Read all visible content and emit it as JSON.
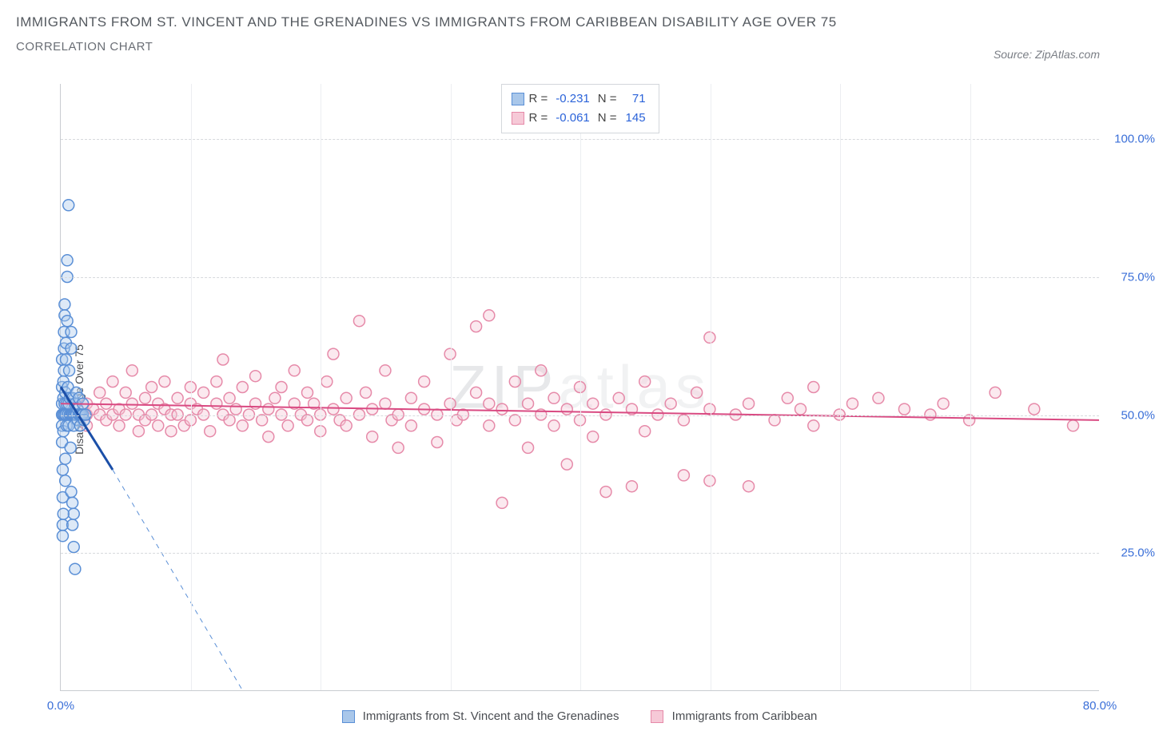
{
  "title_line1": "IMMIGRANTS FROM ST. VINCENT AND THE GRENADINES VS IMMIGRANTS FROM CARIBBEAN DISABILITY AGE OVER 75",
  "title_line2": "CORRELATION CHART",
  "source_label": "Source: ZipAtlas.com",
  "ylabel": "Disability Age Over 75",
  "watermark": {
    "part1": "ZIP",
    "part2": "atlas"
  },
  "chart": {
    "type": "scatter",
    "background_color": "#ffffff",
    "grid_color": "#d7d9dd",
    "axis_color": "#c9ccd1",
    "tick_color": "#3a6fd8",
    "xlim": [
      0,
      80
    ],
    "ylim": [
      0,
      110
    ],
    "xticks": [
      0,
      80
    ],
    "xtick_labels": [
      "0.0%",
      "80.0%"
    ],
    "yticks": [
      25,
      50,
      75,
      100
    ],
    "ytick_labels": [
      "25.0%",
      "50.0%",
      "75.0%",
      "100.0%"
    ],
    "vgrid_positions": [
      10,
      20,
      30,
      40,
      50,
      60,
      70
    ],
    "marker_radius": 7,
    "marker_stroke_width": 1.5,
    "marker_fill_opacity": 0.15,
    "trend_line_width": 2,
    "trend_dash_width": 1,
    "series": [
      {
        "id": "svg_series",
        "name": "Immigrants from St. Vincent and the Grenadines",
        "color_stroke": "#5a8fd6",
        "color_fill": "#a9c7ea",
        "color_line": "#1b4fa8",
        "r_value": "-0.231",
        "n_value": "71",
        "trend": {
          "x1": 0,
          "y1": 55,
          "x2": 4,
          "y2": 40,
          "dash_x2": 14,
          "dash_y2": 0
        },
        "points": [
          [
            0.1,
            50
          ],
          [
            0.1,
            52
          ],
          [
            0.1,
            48
          ],
          [
            0.1,
            55
          ],
          [
            0.1,
            60
          ],
          [
            0.1,
            45
          ],
          [
            0.15,
            30
          ],
          [
            0.15,
            35
          ],
          [
            0.15,
            40
          ],
          [
            0.2,
            50
          ],
          [
            0.2,
            53
          ],
          [
            0.2,
            56
          ],
          [
            0.2,
            47
          ],
          [
            0.25,
            62
          ],
          [
            0.25,
            58
          ],
          [
            0.25,
            65
          ],
          [
            0.3,
            70
          ],
          [
            0.3,
            68
          ],
          [
            0.3,
            50
          ],
          [
            0.3,
            52
          ],
          [
            0.35,
            54
          ],
          [
            0.35,
            42
          ],
          [
            0.35,
            38
          ],
          [
            0.4,
            50
          ],
          [
            0.4,
            60
          ],
          [
            0.4,
            63
          ],
          [
            0.45,
            48
          ],
          [
            0.45,
            52
          ],
          [
            0.5,
            67
          ],
          [
            0.5,
            75
          ],
          [
            0.5,
            78
          ],
          [
            0.55,
            50
          ],
          [
            0.55,
            55
          ],
          [
            0.6,
            52
          ],
          [
            0.6,
            48
          ],
          [
            0.65,
            58
          ],
          [
            0.7,
            50
          ],
          [
            0.7,
            53
          ],
          [
            0.75,
            44
          ],
          [
            0.8,
            50
          ],
          [
            0.8,
            36
          ],
          [
            0.9,
            34
          ],
          [
            0.9,
            30
          ],
          [
            1.0,
            32
          ],
          [
            0.15,
            28
          ],
          [
            0.2,
            32
          ],
          [
            1.0,
            26
          ],
          [
            1.1,
            22
          ],
          [
            0.6,
            88
          ],
          [
            0.8,
            65
          ],
          [
            0.8,
            62
          ],
          [
            0.85,
            50
          ],
          [
            0.9,
            50
          ],
          [
            0.9,
            53
          ],
          [
            1.0,
            50
          ],
          [
            1.0,
            48
          ],
          [
            1.1,
            50
          ],
          [
            1.1,
            52
          ],
          [
            1.2,
            50
          ],
          [
            1.2,
            54
          ],
          [
            1.3,
            49
          ],
          [
            1.3,
            51
          ],
          [
            1.4,
            50
          ],
          [
            1.4,
            53
          ],
          [
            1.5,
            50
          ],
          [
            1.5,
            48
          ],
          [
            1.6,
            50
          ],
          [
            1.7,
            50
          ],
          [
            1.7,
            52
          ],
          [
            1.8,
            49
          ],
          [
            1.9,
            50
          ]
        ]
      },
      {
        "id": "carib_series",
        "name": "Immigrants from Caribbean",
        "color_stroke": "#e68aa9",
        "color_fill": "#f6c9d7",
        "color_line": "#d94a82",
        "r_value": "-0.061",
        "n_value": "145",
        "trend": {
          "x1": 0,
          "y1": 52,
          "x2": 80,
          "y2": 49
        },
        "points": [
          [
            2,
            50
          ],
          [
            2,
            52
          ],
          [
            2,
            48
          ],
          [
            2.5,
            51
          ],
          [
            3,
            50
          ],
          [
            3,
            54
          ],
          [
            3.5,
            49
          ],
          [
            3.5,
            52
          ],
          [
            4,
            50
          ],
          [
            4,
            56
          ],
          [
            4.5,
            51
          ],
          [
            4.5,
            48
          ],
          [
            5,
            50
          ],
          [
            5,
            54
          ],
          [
            5.5,
            52
          ],
          [
            5.5,
            58
          ],
          [
            6,
            50
          ],
          [
            6,
            47
          ],
          [
            6.5,
            53
          ],
          [
            6.5,
            49
          ],
          [
            7,
            50
          ],
          [
            7,
            55
          ],
          [
            7.5,
            52
          ],
          [
            7.5,
            48
          ],
          [
            8,
            51
          ],
          [
            8,
            56
          ],
          [
            8.5,
            50
          ],
          [
            8.5,
            47
          ],
          [
            9,
            53
          ],
          [
            9,
            50
          ],
          [
            9.5,
            48
          ],
          [
            10,
            52
          ],
          [
            10,
            55
          ],
          [
            10,
            49
          ],
          [
            10.5,
            51
          ],
          [
            11,
            50
          ],
          [
            11,
            54
          ],
          [
            11.5,
            47
          ],
          [
            12,
            52
          ],
          [
            12,
            56
          ],
          [
            12.5,
            50
          ],
          [
            12.5,
            60
          ],
          [
            13,
            49
          ],
          [
            13,
            53
          ],
          [
            13.5,
            51
          ],
          [
            14,
            48
          ],
          [
            14,
            55
          ],
          [
            14.5,
            50
          ],
          [
            15,
            52
          ],
          [
            15,
            57
          ],
          [
            15.5,
            49
          ],
          [
            16,
            51
          ],
          [
            16,
            46
          ],
          [
            16.5,
            53
          ],
          [
            17,
            50
          ],
          [
            17,
            55
          ],
          [
            17.5,
            48
          ],
          [
            18,
            52
          ],
          [
            18,
            58
          ],
          [
            18.5,
            50
          ],
          [
            19,
            49
          ],
          [
            19,
            54
          ],
          [
            19.5,
            52
          ],
          [
            20,
            50
          ],
          [
            20,
            47
          ],
          [
            20.5,
            56
          ],
          [
            21,
            51
          ],
          [
            21,
            61
          ],
          [
            21.5,
            49
          ],
          [
            22,
            53
          ],
          [
            22,
            48
          ],
          [
            23,
            50
          ],
          [
            23,
            67
          ],
          [
            23.5,
            54
          ],
          [
            24,
            51
          ],
          [
            24,
            46
          ],
          [
            25,
            52
          ],
          [
            25,
            58
          ],
          [
            25.5,
            49
          ],
          [
            26,
            50
          ],
          [
            26,
            44
          ],
          [
            27,
            53
          ],
          [
            27,
            48
          ],
          [
            28,
            51
          ],
          [
            28,
            56
          ],
          [
            29,
            50
          ],
          [
            29,
            45
          ],
          [
            30,
            52
          ],
          [
            30,
            61
          ],
          [
            30.5,
            49
          ],
          [
            31,
            50
          ],
          [
            32,
            54
          ],
          [
            32,
            66
          ],
          [
            33,
            48
          ],
          [
            33,
            52
          ],
          [
            33,
            68
          ],
          [
            34,
            51
          ],
          [
            34,
            34
          ],
          [
            35,
            56
          ],
          [
            35,
            49
          ],
          [
            36,
            52
          ],
          [
            36,
            44
          ],
          [
            37,
            50
          ],
          [
            37,
            58
          ],
          [
            38,
            48
          ],
          [
            38,
            53
          ],
          [
            39,
            51
          ],
          [
            39,
            41
          ],
          [
            40,
            55
          ],
          [
            40,
            49
          ],
          [
            41,
            52
          ],
          [
            41,
            46
          ],
          [
            42,
            50
          ],
          [
            42,
            36
          ],
          [
            43,
            53
          ],
          [
            44,
            51
          ],
          [
            44,
            37
          ],
          [
            45,
            47
          ],
          [
            45,
            56
          ],
          [
            46,
            50
          ],
          [
            47,
            52
          ],
          [
            48,
            49
          ],
          [
            48,
            39
          ],
          [
            49,
            54
          ],
          [
            50,
            51
          ],
          [
            50,
            38
          ],
          [
            50,
            64
          ],
          [
            52,
            50
          ],
          [
            53,
            52
          ],
          [
            53,
            37
          ],
          [
            55,
            49
          ],
          [
            56,
            53
          ],
          [
            57,
            51
          ],
          [
            58,
            48
          ],
          [
            58,
            55
          ],
          [
            60,
            50
          ],
          [
            61,
            52
          ],
          [
            63,
            53
          ],
          [
            65,
            51
          ],
          [
            67,
            50
          ],
          [
            68,
            52
          ],
          [
            70,
            49
          ],
          [
            72,
            54
          ],
          [
            75,
            51
          ],
          [
            78,
            48
          ]
        ]
      }
    ]
  },
  "stats_legend": {
    "r_label": "R =",
    "n_label": "N ="
  },
  "bottom_legend": {
    "item1": "Immigrants from St. Vincent and the Grenadines",
    "item2": "Immigrants from Caribbean"
  }
}
